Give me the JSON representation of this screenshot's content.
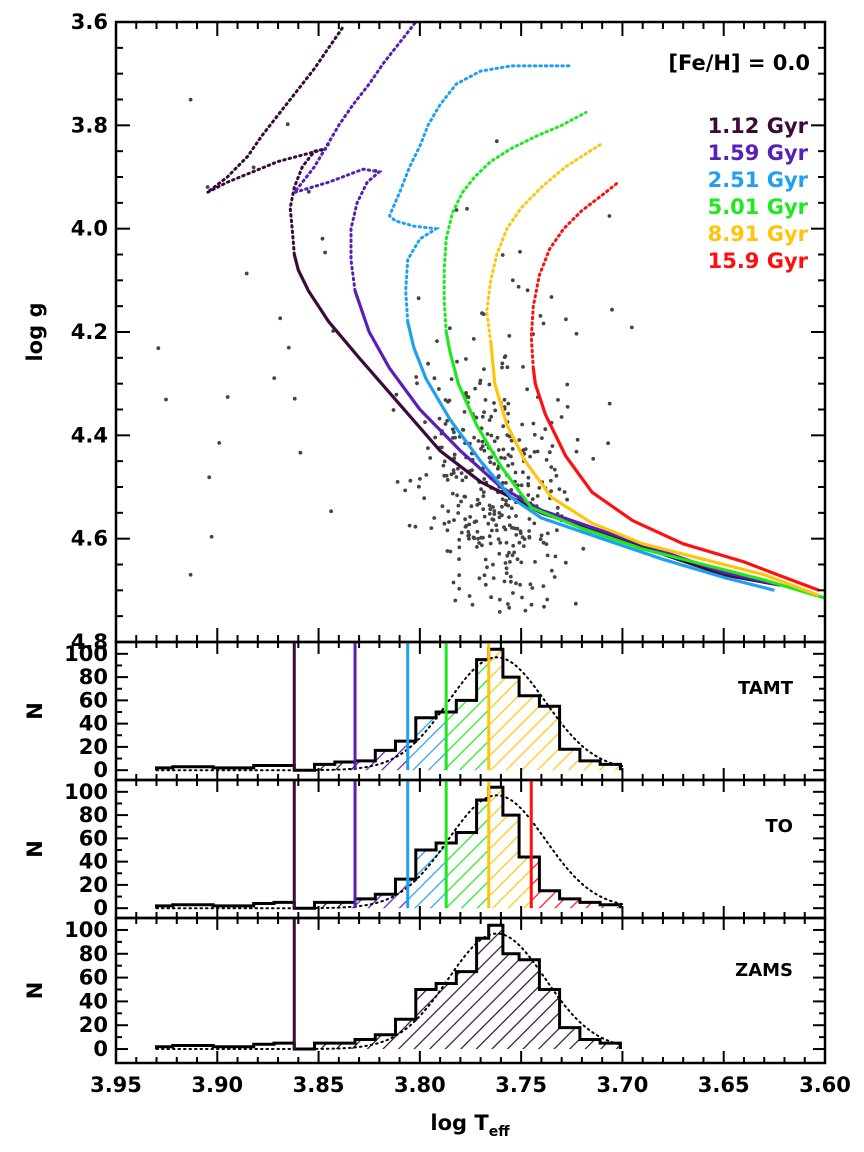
{
  "chart_data": [
    {
      "type": "scatter",
      "panel": "isochrones",
      "title": "[Fe/H] = 0.0",
      "xlabel": "",
      "ylabel": "log g",
      "xlim": [
        3.95,
        3.6
      ],
      "ylim": [
        4.8,
        3.6
      ],
      "x_ticks": [
        "3.95",
        "3.90",
        "3.85",
        "3.80",
        "3.75",
        "3.70",
        "3.65",
        "3.60"
      ],
      "y_ticks": [
        {
          "value": 3.6,
          "label": "3.6"
        },
        {
          "value": 3.8,
          "label": "3.8"
        },
        {
          "value": 4.0,
          "label": "4.0"
        },
        {
          "value": 4.2,
          "label": "4.2"
        },
        {
          "value": 4.4,
          "label": "4.4"
        },
        {
          "value": 4.6,
          "label": "4.6"
        },
        {
          "value": 4.8,
          "label": "4.8"
        }
      ],
      "series": [
        {
          "name": "1.12 Gyr",
          "color": "#3a0a3a",
          "ms_tip": [
            3.862,
            4.05
          ],
          "track": [
            [
              3.622,
              4.69
            ],
            [
              3.65,
              4.67
            ],
            [
              3.68,
              4.63
            ],
            [
              3.71,
              4.59
            ],
            [
              3.74,
              4.55
            ],
            [
              3.77,
              4.49
            ],
            [
              3.79,
              4.43
            ],
            [
              3.81,
              4.34
            ],
            [
              3.83,
              4.25
            ],
            [
              3.845,
              4.18
            ],
            [
              3.855,
              4.12
            ],
            [
              3.86,
              4.08
            ],
            [
              3.862,
              4.05
            ]
          ],
          "hook": [
            [
              3.862,
              4.05
            ],
            [
              3.863,
              4.0
            ],
            [
              3.864,
              3.96
            ],
            [
              3.862,
              3.92
            ],
            [
              3.858,
              3.88
            ],
            [
              3.852,
              3.85
            ],
            [
              3.846,
              3.845
            ],
            [
              3.87,
              3.87
            ],
            [
              3.895,
              3.91
            ],
            [
              3.905,
              3.93
            ],
            [
              3.895,
              3.9
            ],
            [
              3.885,
              3.86
            ],
            [
              3.878,
              3.82
            ],
            [
              3.87,
              3.78
            ],
            [
              3.86,
              3.73
            ],
            [
              3.852,
              3.69
            ],
            [
              3.845,
              3.65
            ],
            [
              3.838,
              3.61
            ]
          ]
        },
        {
          "name": "1.59 Gyr",
          "color": "#5a1fb4",
          "ms_tip": [
            3.832,
            4.12
          ],
          "track": [
            [
              3.622,
              4.69
            ],
            [
              3.65,
              4.665
            ],
            [
              3.68,
              4.625
            ],
            [
              3.71,
              4.585
            ],
            [
              3.74,
              4.545
            ],
            [
              3.76,
              4.5
            ],
            [
              3.78,
              4.43
            ],
            [
              3.8,
              4.35
            ],
            [
              3.815,
              4.27
            ],
            [
              3.825,
              4.2
            ],
            [
              3.832,
              4.12
            ]
          ],
          "hook": [
            [
              3.832,
              4.12
            ],
            [
              3.834,
              4.06
            ],
            [
              3.834,
              4.0
            ],
            [
              3.831,
              3.95
            ],
            [
              3.826,
              3.91
            ],
            [
              3.82,
              3.89
            ],
            [
              3.828,
              3.885
            ],
            [
              3.845,
              3.91
            ],
            [
              3.862,
              3.93
            ],
            [
              3.858,
              3.91
            ],
            [
              3.852,
              3.88
            ],
            [
              3.846,
              3.84
            ],
            [
              3.84,
              3.8
            ],
            [
              3.833,
              3.76
            ],
            [
              3.825,
              3.72
            ],
            [
              3.818,
              3.68
            ],
            [
              3.81,
              3.64
            ],
            [
              3.802,
              3.6
            ]
          ]
        },
        {
          "name": "2.51 Gyr",
          "color": "#1fa0f0",
          "ms_tip": [
            3.806,
            4.18
          ],
          "track": [
            [
              3.625,
              4.7
            ],
            [
              3.65,
              4.675
            ],
            [
              3.68,
              4.64
            ],
            [
              3.71,
              4.6
            ],
            [
              3.74,
              4.56
            ],
            [
              3.755,
              4.52
            ],
            [
              3.77,
              4.45
            ],
            [
              3.785,
              4.37
            ],
            [
              3.797,
              4.29
            ],
            [
              3.803,
              4.23
            ],
            [
              3.806,
              4.18
            ]
          ],
          "hook": [
            [
              3.806,
              4.18
            ],
            [
              3.807,
              4.12
            ],
            [
              3.806,
              4.06
            ],
            [
              3.8,
              4.02
            ],
            [
              3.792,
              4.0
            ],
            [
              3.803,
              3.995
            ],
            [
              3.812,
              3.985
            ],
            [
              3.815,
              3.975
            ],
            [
              3.81,
              3.93
            ],
            [
              3.805,
              3.88
            ],
            [
              3.8,
              3.84
            ],
            [
              3.796,
              3.8
            ],
            [
              3.79,
              3.76
            ],
            [
              3.782,
              3.72
            ],
            [
              3.77,
              3.695
            ],
            [
              3.755,
              3.685
            ],
            [
              3.74,
              3.685
            ],
            [
              3.725,
              3.685
            ]
          ]
        },
        {
          "name": "5.01 Gyr",
          "color": "#1ee81e",
          "ms_tip": [
            3.787,
            4.2
          ],
          "track": [
            [
              3.6,
              4.715
            ],
            [
              3.63,
              4.68
            ],
            [
              3.66,
              4.65
            ],
            [
              3.69,
              4.62
            ],
            [
              3.72,
              4.58
            ],
            [
              3.745,
              4.54
            ],
            [
              3.76,
              4.46
            ],
            [
              3.772,
              4.38
            ],
            [
              3.781,
              4.3
            ],
            [
              3.785,
              4.24
            ],
            [
              3.787,
              4.2
            ]
          ],
          "hook": [
            [
              3.787,
              4.2
            ],
            [
              3.788,
              4.14
            ],
            [
              3.788,
              4.08
            ],
            [
              3.787,
              4.02
            ],
            [
              3.784,
              3.97
            ],
            [
              3.779,
              3.93
            ],
            [
              3.773,
              3.9
            ],
            [
              3.765,
              3.87
            ],
            [
              3.755,
              3.845
            ],
            [
              3.742,
              3.82
            ],
            [
              3.73,
              3.8
            ],
            [
              3.718,
              3.775
            ]
          ]
        },
        {
          "name": "8.91 Gyr",
          "color": "#ffc40c",
          "ms_tip": [
            3.765,
            4.22
          ],
          "track": [
            [
              3.603,
              4.71
            ],
            [
              3.63,
              4.67
            ],
            [
              3.66,
              4.64
            ],
            [
              3.69,
              4.61
            ],
            [
              3.715,
              4.57
            ],
            [
              3.735,
              4.52
            ],
            [
              3.748,
              4.45
            ],
            [
              3.757,
              4.38
            ],
            [
              3.763,
              4.3
            ],
            [
              3.765,
              4.22
            ]
          ],
          "hook": [
            [
              3.765,
              4.22
            ],
            [
              3.767,
              4.16
            ],
            [
              3.765,
              4.1
            ],
            [
              3.762,
              4.05
            ],
            [
              3.757,
              4.0
            ],
            [
              3.75,
              3.96
            ],
            [
              3.74,
              3.92
            ],
            [
              3.728,
              3.88
            ],
            [
              3.718,
              3.855
            ],
            [
              3.71,
              3.835
            ]
          ]
        },
        {
          "name": "15.9 Gyr",
          "color": "#ff1010",
          "ms_tip": [
            3.744,
            4.27
          ],
          "track": [
            [
              3.603,
              4.7
            ],
            [
              3.62,
              4.675
            ],
            [
              3.64,
              4.645
            ],
            [
              3.67,
              4.61
            ],
            [
              3.695,
              4.565
            ],
            [
              3.715,
              4.51
            ],
            [
              3.728,
              4.44
            ],
            [
              3.738,
              4.36
            ],
            [
              3.743,
              4.3
            ],
            [
              3.744,
              4.27
            ]
          ],
          "hook": [
            [
              3.744,
              4.27
            ],
            [
              3.745,
              4.21
            ],
            [
              3.744,
              4.15
            ],
            [
              3.741,
              4.09
            ],
            [
              3.736,
              4.04
            ],
            [
              3.729,
              4.0
            ],
            [
              3.72,
              3.965
            ],
            [
              3.71,
              3.935
            ],
            [
              3.702,
              3.91
            ]
          ]
        }
      ]
    },
    {
      "type": "bar",
      "panel": "histogram",
      "label": "TAMT",
      "ylabel": "N",
      "yticks": [
        "0",
        "20",
        "40",
        "60",
        "80",
        "100"
      ],
      "ylim": [
        -5,
        105
      ],
      "bin_edges": [
        3.93,
        3.922,
        3.912,
        3.902,
        3.892,
        3.882,
        3.872,
        3.862,
        3.852,
        3.842,
        3.832,
        3.822,
        3.812,
        3.802,
        3.792,
        3.782,
        3.772,
        3.766,
        3.759,
        3.751,
        3.741,
        3.731,
        3.721,
        3.711,
        3.701
      ],
      "counts": [
        0,
        2,
        3,
        3,
        2,
        2,
        4,
        4,
        0,
        5,
        7,
        8,
        17,
        25,
        45,
        50,
        60,
        95,
        104,
        80,
        64,
        55,
        18,
        8,
        5
      ],
      "markers": [
        {
          "x": 3.862,
          "color": "#3a0a3a"
        },
        {
          "x": 3.832,
          "color": "#5a1fb4"
        },
        {
          "x": 3.806,
          "color": "#1fa0f0"
        },
        {
          "x": 3.787,
          "color": "#1ee81e"
        },
        {
          "x": 3.766,
          "color": "#ffc40c"
        }
      ]
    },
    {
      "type": "bar",
      "panel": "histogram",
      "label": "TO",
      "ylabel": "N",
      "yticks": [
        "0",
        "20",
        "40",
        "60",
        "80",
        "100"
      ],
      "ylim": [
        -5,
        105
      ],
      "bin_edges": [
        3.93,
        3.922,
        3.912,
        3.902,
        3.892,
        3.882,
        3.872,
        3.862,
        3.852,
        3.842,
        3.832,
        3.822,
        3.812,
        3.802,
        3.792,
        3.782,
        3.772,
        3.766,
        3.759,
        3.751,
        3.741,
        3.731,
        3.721,
        3.711,
        3.701
      ],
      "counts": [
        0,
        2,
        3,
        3,
        2,
        2,
        4,
        5,
        0,
        5,
        5,
        8,
        12,
        25,
        50,
        56,
        65,
        93,
        104,
        80,
        44,
        15,
        8,
        5,
        3
      ],
      "markers": [
        {
          "x": 3.862,
          "color": "#3a0a3a"
        },
        {
          "x": 3.832,
          "color": "#5a1fb4"
        },
        {
          "x": 3.806,
          "color": "#1fa0f0"
        },
        {
          "x": 3.787,
          "color": "#1ee81e"
        },
        {
          "x": 3.766,
          "color": "#ffc40c"
        },
        {
          "x": 3.745,
          "color": "#ff1010"
        }
      ]
    },
    {
      "type": "bar",
      "panel": "histogram",
      "label": "ZAMS",
      "ylabel": "N",
      "xlabel": "log T_eff",
      "yticks": [
        "0",
        "20",
        "40",
        "60",
        "80",
        "100"
      ],
      "ylim": [
        -5,
        105
      ],
      "bin_edges": [
        3.93,
        3.922,
        3.912,
        3.902,
        3.892,
        3.882,
        3.872,
        3.862,
        3.852,
        3.842,
        3.832,
        3.822,
        3.812,
        3.802,
        3.792,
        3.782,
        3.772,
        3.766,
        3.759,
        3.751,
        3.741,
        3.731,
        3.721,
        3.711,
        3.701
      ],
      "counts": [
        0,
        2,
        3,
        3,
        2,
        2,
        4,
        5,
        0,
        5,
        5,
        8,
        12,
        25,
        50,
        55,
        65,
        93,
        104,
        80,
        75,
        50,
        18,
        8,
        5
      ],
      "markers": [
        {
          "x": 3.862,
          "color": "#3a0a3a"
        }
      ]
    }
  ],
  "x_axis": {
    "label_main": "log T",
    "label_sub": "eff",
    "ticks": [
      "3.95",
      "3.90",
      "3.85",
      "3.80",
      "3.75",
      "3.70",
      "3.65",
      "3.60"
    ]
  }
}
